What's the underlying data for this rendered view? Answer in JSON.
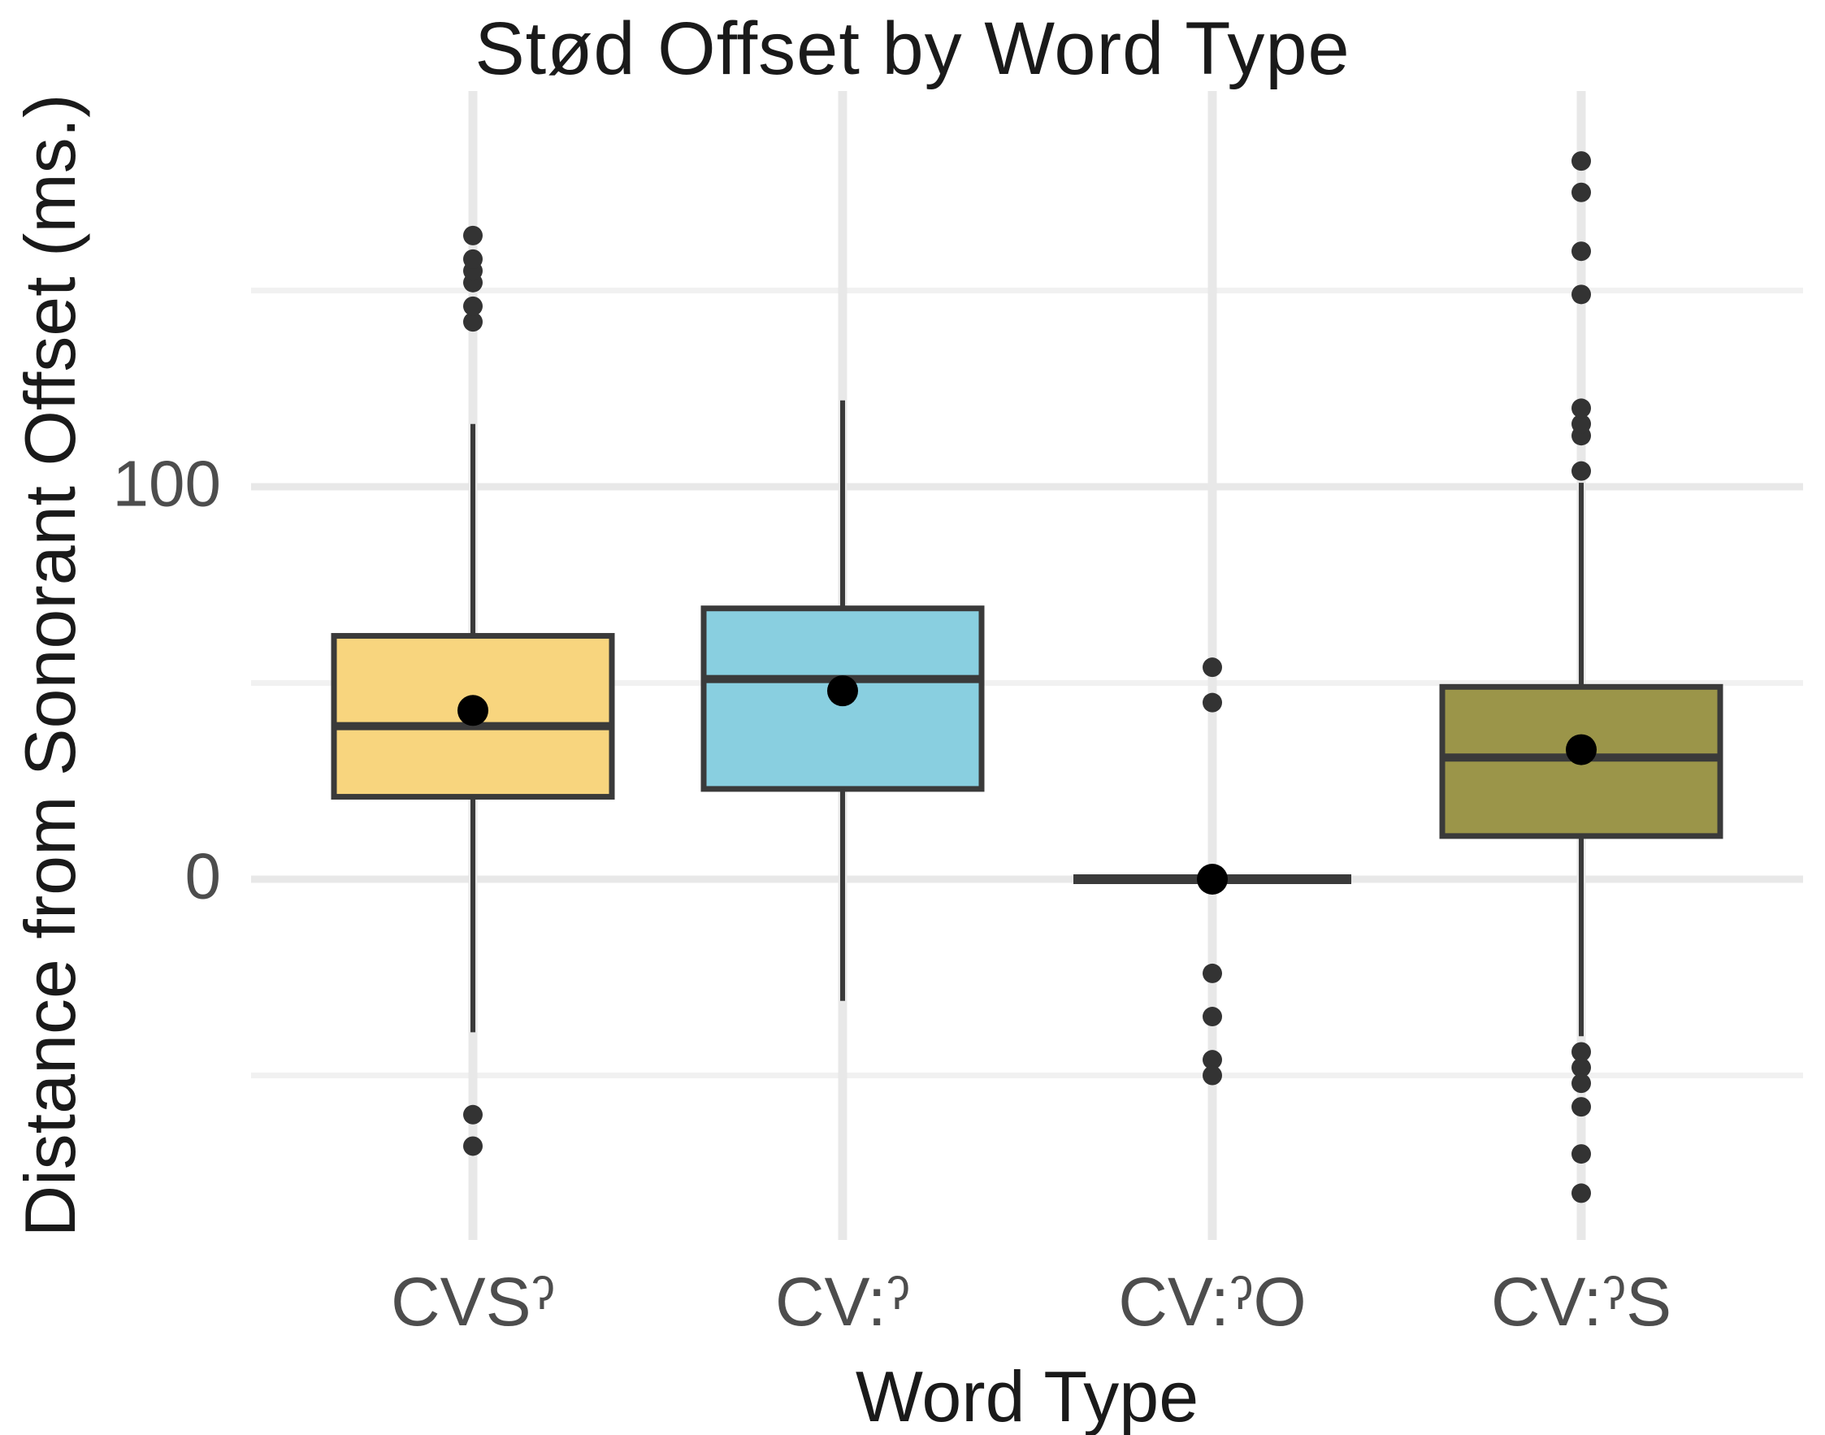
{
  "title": "Stød Offset by Word Type",
  "chart_data": {
    "type": "boxplot",
    "title": "Stød Offset by Word Type",
    "xlabel": "Word Type",
    "ylabel": "Distance from Sonorant Offset (ms.)",
    "categories": [
      "CVSˀ",
      "CV:ˀ",
      "CV:ˀO",
      "CV:ˀS"
    ],
    "y_tick_labels": [
      "100",
      "0"
    ],
    "y_tick_values": [
      100,
      0
    ],
    "ylim": [
      -91,
      199
    ],
    "gridlines_major": [
      0,
      100
    ],
    "gridlines_minor": [
      -50,
      50,
      150
    ],
    "legend": "none",
    "grid": true,
    "units": "ms",
    "series": [
      {
        "category": "CVSˀ",
        "fill": "#F8D57E",
        "whisker_low": -39,
        "q1": 21,
        "median": 39,
        "q3": 62,
        "whisker_high": 116,
        "mean": 43,
        "outliers_high": [
          142,
          146,
          152,
          155,
          158,
          164
        ],
        "outliers_low": [
          -60,
          -68
        ]
      },
      {
        "category": "CV:ˀ",
        "fill": "#89CFE0",
        "whisker_low": -31,
        "q1": 23,
        "median": 51,
        "q3": 69,
        "whisker_high": 122,
        "mean": 48,
        "outliers_high": [],
        "outliers_low": []
      },
      {
        "category": "CV:ˀO",
        "fill": "#3A3A3A",
        "whisker_low": 0,
        "q1": 0,
        "median": 0,
        "q3": 0,
        "whisker_high": 0,
        "mean": 0,
        "outliers_high": [
          45,
          54
        ],
        "outliers_low": [
          -24,
          -35,
          -46,
          -50
        ]
      },
      {
        "category": "CV:ˀS",
        "fill": "#9B9549",
        "whisker_low": -40,
        "q1": 11,
        "median": 31,
        "q3": 49,
        "whisker_high": 101,
        "mean": 33,
        "outliers_high": [
          104,
          113,
          116,
          120,
          149,
          160,
          175,
          183
        ],
        "outliers_low": [
          -44,
          -48,
          -52,
          -58,
          -70,
          -80
        ]
      }
    ],
    "colors": {
      "box_stroke": "#3A3A3A",
      "median": "#3A3A3A",
      "whisker": "#3A3A3A",
      "mean_dot": "#000000",
      "outlier_dot": "#333333",
      "grid_major": "#E8E8E8",
      "grid_minor": "#F1F1F1",
      "tick_text": "#4d4d4d",
      "title_text": "#1a1a1a",
      "background": "#ffffff"
    }
  }
}
